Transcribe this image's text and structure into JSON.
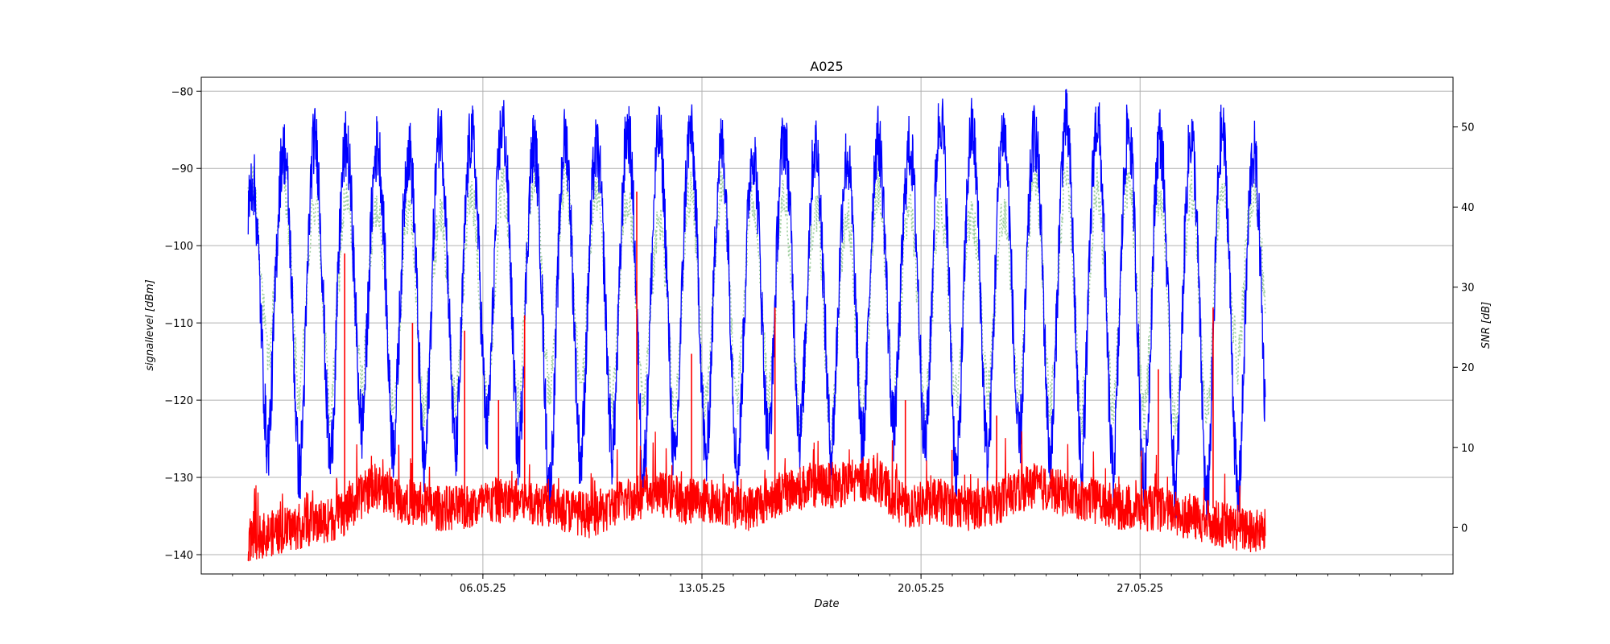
{
  "chart_data": {
    "type": "line",
    "title": "A025",
    "xlabel": "Date",
    "ylabel_left": "signallevel [dBm]",
    "ylabel_right": "SNR [dB]",
    "grid": true,
    "x_range": [
      "2025-04-27",
      "2025-06-06"
    ],
    "x_ticks": [
      {
        "date": "2025-05-06",
        "label": "06.05.25"
      },
      {
        "date": "2025-05-13",
        "label": "13.05.25"
      },
      {
        "date": "2025-05-20",
        "label": "20.05.25"
      },
      {
        "date": "2025-05-27",
        "label": "27.05.25"
      }
    ],
    "y_left": {
      "range": [
        -142.5,
        -78.2
      ],
      "ticks": [
        -80,
        -90,
        -100,
        -110,
        -120,
        -130,
        -140
      ]
    },
    "y_right": {
      "range": [
        -5.8,
        56.2
      ],
      "ticks": [
        50,
        40,
        30,
        20,
        10,
        0
      ]
    },
    "data_start": "2025-04-28T12:00",
    "data_end": "2025-05-31T00:00",
    "series": [
      {
        "axis": "right",
        "color": "#99cc99",
        "style": "dotted",
        "daily_peak_db": [
          42,
          44,
          40,
          41,
          40,
          40,
          39,
          41,
          42,
          44,
          43,
          42,
          42,
          37,
          42,
          42,
          41,
          41,
          40,
          38,
          43,
          39,
          40,
          39,
          39,
          44,
          43,
          42,
          43,
          42,
          42,
          42,
          42
        ],
        "daily_trough_db": [
          25,
          18,
          15,
          14,
          20,
          12,
          14,
          16,
          15,
          16,
          17,
          17,
          14,
          15,
          13,
          16,
          17,
          15,
          11,
          12,
          14,
          16,
          14,
          18,
          15,
          16,
          15,
          14,
          15,
          13,
          12,
          15,
          24
        ]
      },
      {
        "axis": "left",
        "color": "#0000ff",
        "style": "solid",
        "daily_peak_dbm": [
          -92,
          -88,
          -86,
          -87,
          -87,
          -88,
          -85,
          -86,
          -84,
          -87,
          -86,
          -88,
          -85,
          -86,
          -85,
          -87,
          -88,
          -86,
          -87,
          -89,
          -86,
          -88,
          -83,
          -85,
          -85,
          -86,
          -84,
          -84,
          -85,
          -86,
          -86,
          -85,
          -88
        ],
        "daily_trough_dbm": [
          -130,
          -124,
          -133,
          -125,
          -123,
          -128,
          -130,
          -125,
          -123,
          -130,
          -133,
          -125,
          -128,
          -130,
          -128,
          -128,
          -130,
          -123,
          -126,
          -127,
          -125,
          -123,
          -128,
          -131,
          -126,
          -126,
          -129,
          -128,
          -130,
          -133,
          -131,
          -135,
          -132
        ]
      },
      {
        "axis": "left",
        "color": "#ff0000",
        "style": "solid",
        "baseline_dbm": [
          -138,
          -137,
          -136,
          -135,
          -131,
          -133,
          -134,
          -134,
          -133,
          -133,
          -134,
          -135,
          -133,
          -132,
          -133,
          -133,
          -134,
          -132,
          -131,
          -131,
          -130,
          -134,
          -133,
          -134,
          -133,
          -131,
          -132,
          -133,
          -134,
          -134,
          -135,
          -136,
          -137
        ],
        "spikes": [
          {
            "date": "2025-05-01T14:00",
            "value": -101
          },
          {
            "date": "2025-05-03T18:00",
            "value": -110
          },
          {
            "date": "2025-05-05T10:00",
            "value": -111
          },
          {
            "date": "2025-05-06T12:00",
            "value": -120
          },
          {
            "date": "2025-05-07T08:00",
            "value": -109
          },
          {
            "date": "2025-05-10T22:00",
            "value": -93
          },
          {
            "date": "2025-05-12T16:00",
            "value": -114
          },
          {
            "date": "2025-05-15T08:00",
            "value": -108
          },
          {
            "date": "2025-05-19T12:00",
            "value": -120
          },
          {
            "date": "2025-05-22T10:00",
            "value": -122
          },
          {
            "date": "2025-05-27T14:00",
            "value": -116
          },
          {
            "date": "2025-05-29T08:00",
            "value": -108
          }
        ]
      }
    ]
  }
}
